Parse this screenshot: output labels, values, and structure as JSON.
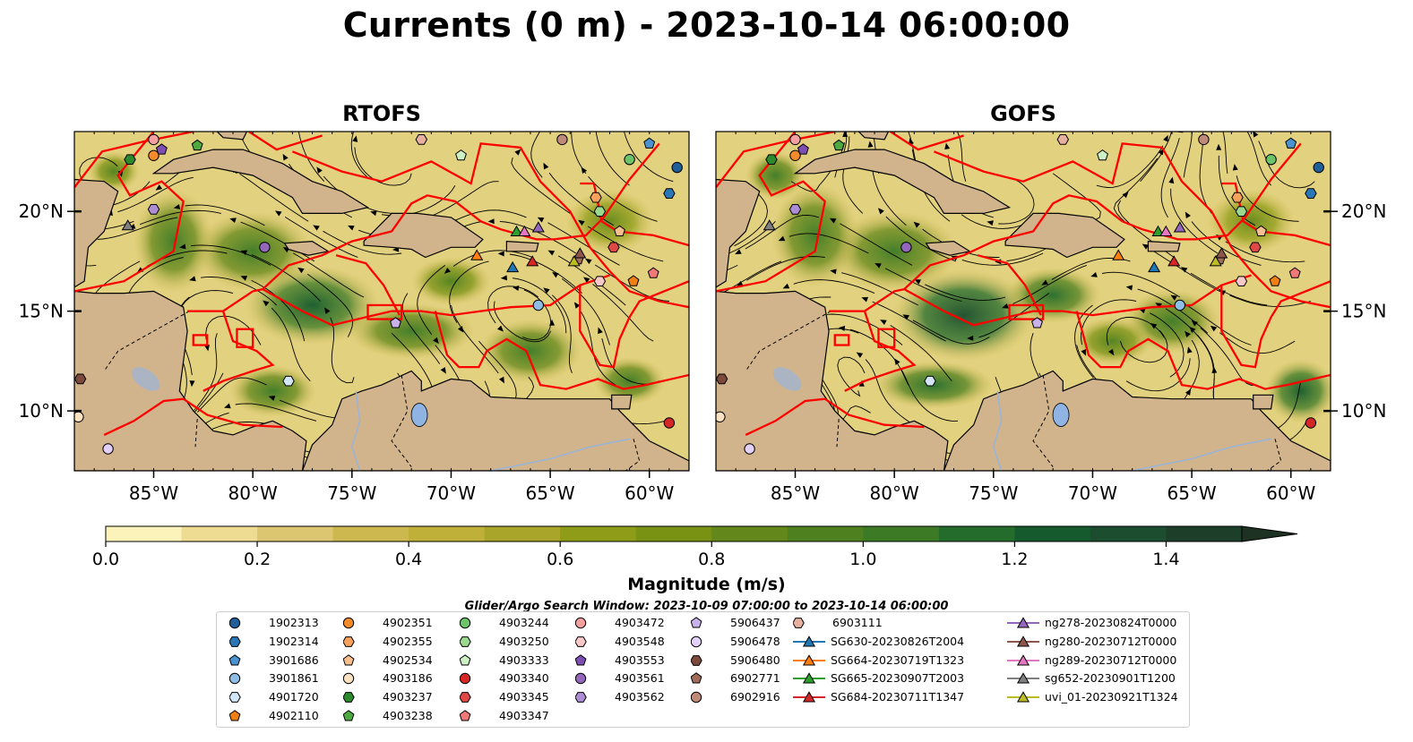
{
  "title": "Currents (0 m) - 2023-10-14 06:00:00",
  "panels": [
    {
      "title": "RTOFS"
    },
    {
      "title": "GOFS"
    }
  ],
  "map": {
    "lon_range": [
      -89,
      -58
    ],
    "lat_range": [
      7,
      24
    ],
    "lon_ticks": [
      {
        "v": -85,
        "label": "85°W"
      },
      {
        "v": -80,
        "label": "80°W"
      },
      {
        "v": -75,
        "label": "75°W"
      },
      {
        "v": -70,
        "label": "70°W"
      },
      {
        "v": -65,
        "label": "65°W"
      },
      {
        "v": -60,
        "label": "60°W"
      }
    ],
    "lat_ticks": [
      {
        "v": 20,
        "label": "20°N"
      },
      {
        "v": 15,
        "label": "15°N"
      },
      {
        "v": 10,
        "label": "10°N"
      }
    ],
    "colors": {
      "land": "#d2b48c",
      "boundary": "#ff0000",
      "streamline": "#000000",
      "water_body": "#8fb4e3"
    }
  },
  "colorbar": {
    "label": "Magnitude (m/s)",
    "min": 0.0,
    "max": 1.6,
    "ticks": [
      {
        "v": 0.0,
        "label": "0.0"
      },
      {
        "v": 0.2,
        "label": "0.2"
      },
      {
        "v": 0.4,
        "label": "0.4"
      },
      {
        "v": 0.6,
        "label": "0.6"
      },
      {
        "v": 0.8,
        "label": "0.8"
      },
      {
        "v": 1.0,
        "label": "1.0"
      },
      {
        "v": 1.2,
        "label": "1.2"
      },
      {
        "v": 1.4,
        "label": "1.4"
      }
    ],
    "colors": [
      "#fbf3b9",
      "#eedc93",
      "#dcc66f",
      "#cdb84f",
      "#bfb03a",
      "#a9a52a",
      "#8f9c18",
      "#7a9214",
      "#63871a",
      "#4f801f",
      "#3c7a26",
      "#236c2c",
      "#145a2d",
      "#1b4d2e",
      "#1d3f2a",
      "#1e3223"
    ]
  },
  "subtitle": "Glider/Argo Search Window: 2023-10-09 07:00:00 to 2023-10-14 06:00:00",
  "legend": {
    "columns": [
      [
        {
          "label": "1902313",
          "marker": "circle",
          "color": "#1f5f99"
        },
        {
          "label": "1902314",
          "marker": "hexagon",
          "color": "#2a77b8"
        },
        {
          "label": "3901686",
          "marker": "pentagon",
          "color": "#4a93cf"
        },
        {
          "label": "3901861",
          "marker": "circle",
          "color": "#8fbde6"
        },
        {
          "label": "4901720",
          "marker": "hexagon",
          "color": "#d3e6f7"
        },
        {
          "label": "4902110",
          "marker": "pentagon",
          "color": "#f07f14"
        }
      ],
      [
        {
          "label": "4902351",
          "marker": "circle",
          "color": "#f58a2a"
        },
        {
          "label": "4902355",
          "marker": "hexagon",
          "color": "#f6a25c"
        },
        {
          "label": "4902534",
          "marker": "pentagon",
          "color": "#f8c08f"
        },
        {
          "label": "4903186",
          "marker": "circle",
          "color": "#fde2c2"
        },
        {
          "label": "4903237",
          "marker": "hexagon",
          "color": "#2c8a2c"
        },
        {
          "label": "4903238",
          "marker": "pentagon",
          "color": "#4eaa40"
        }
      ],
      [
        {
          "label": "4903244",
          "marker": "circle",
          "color": "#6cc36a"
        },
        {
          "label": "4903250",
          "marker": "hexagon",
          "color": "#9bd98f"
        },
        {
          "label": "4903333",
          "marker": "pentagon",
          "color": "#cdf0c4"
        },
        {
          "label": "4903340",
          "marker": "circle",
          "color": "#d62728"
        },
        {
          "label": "4903345",
          "marker": "hexagon",
          "color": "#e04848"
        },
        {
          "label": "4903347",
          "marker": "pentagon",
          "color": "#f07878"
        }
      ],
      [
        {
          "label": "4903472",
          "marker": "circle",
          "color": "#f5a0a0"
        },
        {
          "label": "4903548",
          "marker": "hexagon",
          "color": "#fac8c8"
        },
        {
          "label": "4903553",
          "marker": "pentagon",
          "color": "#7e4fb3"
        },
        {
          "label": "4903561",
          "marker": "circle",
          "color": "#9467bd"
        },
        {
          "label": "4903562",
          "marker": "hexagon",
          "color": "#ad8ed6"
        }
      ],
      [
        {
          "label": "5906437",
          "marker": "pentagon",
          "color": "#c9b1ec"
        },
        {
          "label": "5906478",
          "marker": "circle",
          "color": "#e3d0f7"
        },
        {
          "label": "5906480",
          "marker": "hexagon",
          "color": "#7b4a3c"
        },
        {
          "label": "6902771",
          "marker": "pentagon",
          "color": "#a16c5a"
        },
        {
          "label": "6902916",
          "marker": "circle",
          "color": "#c08a78"
        }
      ],
      [
        {
          "label": "6903111",
          "marker": "hexagon",
          "color": "#e8b0a0"
        },
        {
          "label": "SG630-20230826T2004",
          "marker": "triangle",
          "color": "#1f77b4"
        },
        {
          "label": "SG664-20230719T1323",
          "marker": "triangle",
          "color": "#ff7f0e"
        },
        {
          "label": "SG665-20230907T2003",
          "marker": "triangle",
          "color": "#2ca02c"
        },
        {
          "label": "SG684-20230711T1347",
          "marker": "triangle",
          "color": "#d62728"
        }
      ],
      [
        {
          "label": "ng278-20230824T0000",
          "marker": "triangle",
          "color": "#9467bd"
        },
        {
          "label": "ng280-20230712T0000",
          "marker": "triangle",
          "color": "#8c564b"
        },
        {
          "label": "ng289-20230712T0000",
          "marker": "triangle",
          "color": "#e377c2"
        },
        {
          "label": "sg652-20230901T1200",
          "marker": "triangle",
          "color": "#7f7f7f"
        },
        {
          "label": "uvi_01-20230921T1324",
          "marker": "triangle",
          "color": "#bcbd22"
        }
      ]
    ]
  },
  "platforms": [
    {
      "id": "1902313",
      "lon": -58.6,
      "lat": 22.2
    },
    {
      "id": "1902314",
      "lon": -59.0,
      "lat": 20.9
    },
    {
      "id": "3901686",
      "lon": -60.0,
      "lat": 23.4
    },
    {
      "id": "3901861",
      "lon": -65.6,
      "lat": 15.3
    },
    {
      "id": "4901720",
      "lon": -78.2,
      "lat": 11.5
    },
    {
      "id": "4902110",
      "lon": -60.8,
      "lat": 16.5
    },
    {
      "id": "4902351",
      "lon": -85.0,
      "lat": 22.8
    },
    {
      "id": "4902355",
      "lon": -62.7,
      "lat": 20.7
    },
    {
      "id": "4902534",
      "lon": -61.5,
      "lat": 19.0
    },
    {
      "id": "4903186",
      "lon": -88.8,
      "lat": 9.7
    },
    {
      "id": "4903237",
      "lon": -86.2,
      "lat": 22.6
    },
    {
      "id": "4903238",
      "lon": -82.8,
      "lat": 23.3
    },
    {
      "id": "4903244",
      "lon": -61.0,
      "lat": 22.6
    },
    {
      "id": "4903250",
      "lon": -62.5,
      "lat": 20.0
    },
    {
      "id": "4903333",
      "lon": -69.5,
      "lat": 22.8
    },
    {
      "id": "4903340",
      "lon": -59.0,
      "lat": 9.4
    },
    {
      "id": "4903345",
      "lon": -61.8,
      "lat": 18.2
    },
    {
      "id": "4903347",
      "lon": -59.8,
      "lat": 16.9
    },
    {
      "id": "4903472",
      "lon": -85.0,
      "lat": 23.6
    },
    {
      "id": "4903548",
      "lon": -62.5,
      "lat": 16.5
    },
    {
      "id": "4903553",
      "lon": -84.6,
      "lat": 23.1
    },
    {
      "id": "4903561",
      "lon": -79.4,
      "lat": 18.2
    },
    {
      "id": "4903562",
      "lon": -85.0,
      "lat": 20.1
    },
    {
      "id": "5906437",
      "lon": -72.8,
      "lat": 14.4
    },
    {
      "id": "5906478",
      "lon": -87.3,
      "lat": 8.1
    },
    {
      "id": "5906480",
      "lon": -88.7,
      "lat": 11.6
    },
    {
      "id": "6902771",
      "lon": -63.6,
      "lat": 17.6
    },
    {
      "id": "6902916",
      "lon": -64.4,
      "lat": 23.6
    },
    {
      "id": "6903111",
      "lon": -71.5,
      "lat": 23.6
    },
    {
      "id": "SG630-20230826T2004",
      "lon": -66.9,
      "lat": 17.2
    },
    {
      "id": "SG664-20230719T1323",
      "lon": -68.7,
      "lat": 17.8
    },
    {
      "id": "SG665-20230907T2003",
      "lon": -66.7,
      "lat": 19.0
    },
    {
      "id": "SG684-20230711T1347",
      "lon": -65.9,
      "lat": 17.5
    },
    {
      "id": "ng278-20230824T0000",
      "lon": -65.6,
      "lat": 19.2
    },
    {
      "id": "ng280-20230712T0000",
      "lon": -63.5,
      "lat": 17.9
    },
    {
      "id": "ng289-20230712T0000",
      "lon": -66.3,
      "lat": 19.0
    },
    {
      "id": "sg652-20230901T1200",
      "lon": -86.3,
      "lat": 19.3
    },
    {
      "id": "uvi_01-20230921T1324",
      "lon": -63.8,
      "lat": 17.5
    }
  ]
}
